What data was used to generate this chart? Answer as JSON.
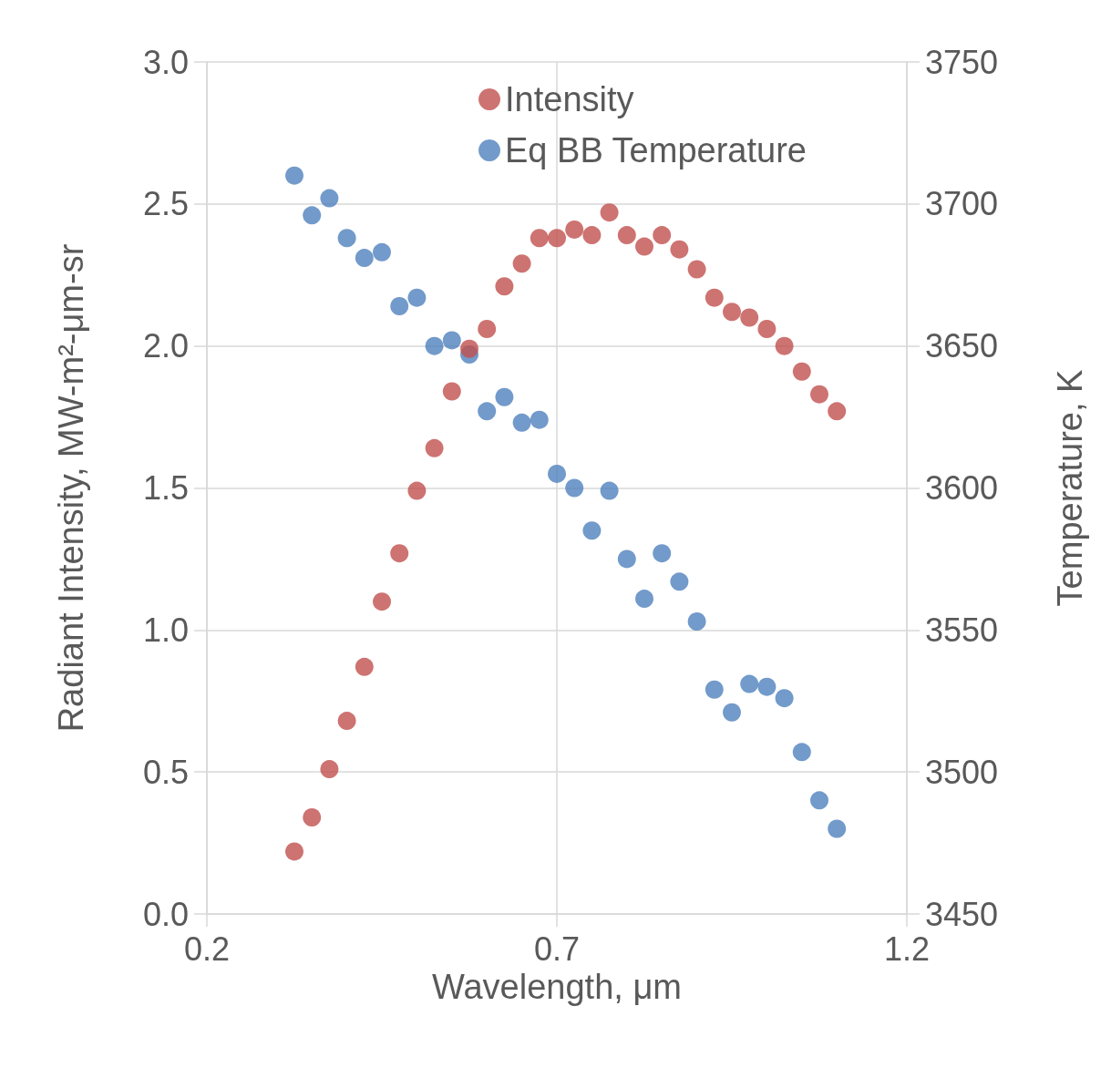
{
  "chart_data": {
    "type": "scatter",
    "xlabel": "Wavelength, μm",
    "ylabel": "Radiant Intensity, MW-m²-μm-sr",
    "y2label": "Temperature, K",
    "x": [
      0.325,
      0.35,
      0.375,
      0.4,
      0.425,
      0.45,
      0.475,
      0.5,
      0.525,
      0.55,
      0.575,
      0.6,
      0.625,
      0.65,
      0.675,
      0.7,
      0.725,
      0.75,
      0.775,
      0.8,
      0.825,
      0.85,
      0.875,
      0.9,
      0.925,
      0.95,
      0.975,
      1.0,
      1.025,
      1.05,
      1.075,
      1.1
    ],
    "series": [
      {
        "name": "Intensity",
        "color": "#c0504d",
        "values": [
          0.22,
          0.34,
          0.51,
          0.68,
          0.87,
          1.1,
          1.27,
          1.49,
          1.64,
          1.84,
          1.99,
          2.06,
          2.21,
          2.29,
          2.38,
          2.38,
          2.41,
          2.39,
          2.47,
          2.39,
          2.35,
          2.39,
          2.34,
          2.27,
          2.17,
          2.12,
          2.1,
          2.06,
          2.0,
          1.91,
          1.83,
          1.77
        ]
      },
      {
        "name": "Eq BB Temperature",
        "color": "#4f81bd",
        "axis": "y2",
        "values": [
          3710,
          3696,
          3702,
          3688,
          3681,
          3683,
          3664,
          3667,
          3650,
          3652,
          3647,
          3627,
          3632,
          3623,
          3624,
          3605,
          3600,
          3585,
          3599,
          3575,
          3561,
          3577,
          3567,
          3553,
          3529,
          3521,
          3531,
          3530,
          3526,
          3507,
          3490,
          3480
        ]
      }
    ],
    "xlim": [
      0.2,
      1.2
    ],
    "xticks": [
      0.2,
      0.7,
      1.2
    ],
    "ylim": [
      0,
      3
    ],
    "yticks": [
      {
        "value": 0,
        "label": "0.0"
      },
      0.5,
      {
        "value": 1,
        "label": "1.0"
      },
      1.5,
      {
        "value": 2,
        "label": "2.0"
      },
      2.5,
      {
        "value": 3,
        "label": "3.0"
      }
    ],
    "y2lim": [
      3450,
      3750
    ],
    "y2ticks": [
      3450,
      3500,
      3550,
      3600,
      3650,
      3700,
      3750
    ],
    "grid": true,
    "legend": "top",
    "marker": "circle"
  }
}
